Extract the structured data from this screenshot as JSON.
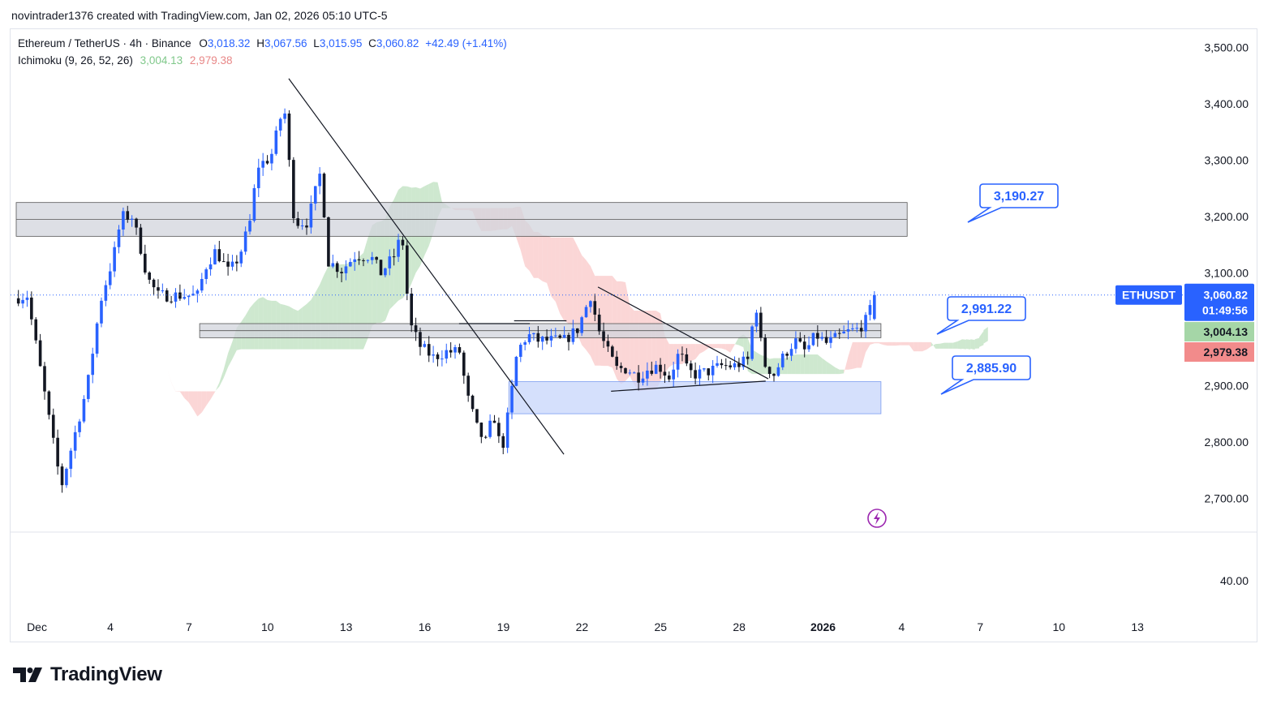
{
  "caption": "novintrader1376 created with TradingView.com, Jan 02, 2026 05:10 UTC-5",
  "legend": {
    "symbol": "Ethereum / TetherUS · 4h · Binance",
    "o_label": "O",
    "o_value": "3,018.32",
    "h_label": "H",
    "h_value": "3,067.56",
    "l_label": "L",
    "l_value": "3,015.95",
    "c_label": "C",
    "c_value": "3,060.82",
    "change": "+42.49 (+1.41%)",
    "ichimoku_label": "Ichimoku (9, 26, 52, 26)",
    "ichimoku_a": "3,004.13",
    "ichimoku_b": "2,979.38"
  },
  "price_axis": {
    "ticks": [
      "3,500.00",
      "3,400.00",
      "3,300.00",
      "3,200.00",
      "3,100.00",
      "2,900.00",
      "2,800.00",
      "2,700.00"
    ],
    "tick_values": [
      3500,
      3400,
      3300,
      3200,
      3100,
      2900,
      2800,
      2700
    ],
    "lower_pane_tick": "40.00",
    "symbol_tag": "ETHUSDT",
    "last_price": "3,060.82",
    "countdown": "01:49:56",
    "span_a_tag": "3,004.13",
    "span_b_tag": "2,979.38"
  },
  "time_axis": {
    "labels": [
      "Dec",
      "4",
      "7",
      "10",
      "13",
      "16",
      "19",
      "22",
      "25",
      "28",
      "2026",
      "4",
      "7",
      "10",
      "13"
    ]
  },
  "callouts": [
    {
      "label": "3,190.27",
      "price": 3190.27
    },
    {
      "label": "2,991.22",
      "price": 2991.22
    },
    {
      "label": "2,885.90",
      "price": 2885.9
    }
  ],
  "colors": {
    "bull": "#2962ff",
    "bear": "#131722",
    "cloud_green": "#a5d6a7",
    "cloud_red": "#f8b4b4",
    "zone_grey": "#d1d4dc",
    "zone_blue": "#c7d6fb",
    "tag_green": "#a5d6a7",
    "tag_red": "#f28b8b",
    "accent": "#2962ff"
  },
  "chart_data": {
    "type": "candlestick",
    "title": "Ethereum / TetherUS · 4h · Binance",
    "ylim": [
      2640,
      3560
    ],
    "x_day_range": [
      0,
      42
    ],
    "anchors": [
      [
        0.0,
        3055
      ],
      [
        0.5,
        3060
      ],
      [
        1.0,
        2930
      ],
      [
        1.3,
        2850
      ],
      [
        1.8,
        2720
      ],
      [
        2.3,
        2810
      ],
      [
        2.8,
        2900
      ],
      [
        3.3,
        3050
      ],
      [
        3.8,
        3130
      ],
      [
        4.1,
        3200
      ],
      [
        4.5,
        3200
      ],
      [
        4.8,
        3150
      ],
      [
        5.1,
        3090
      ],
      [
        5.5,
        3060
      ],
      [
        6.0,
        3060
      ],
      [
        6.5,
        3060
      ],
      [
        7.0,
        3060
      ],
      [
        7.3,
        3110
      ],
      [
        7.7,
        3140
      ],
      [
        8.2,
        3100
      ],
      [
        8.6,
        3130
      ],
      [
        9.0,
        3190
      ],
      [
        9.3,
        3290
      ],
      [
        9.8,
        3305
      ],
      [
        10.3,
        3400
      ],
      [
        10.7,
        3190
      ],
      [
        11.2,
        3190
      ],
      [
        11.7,
        3280
      ],
      [
        12.0,
        3120
      ],
      [
        12.5,
        3105
      ],
      [
        13.0,
        3130
      ],
      [
        13.6,
        3130
      ],
      [
        14.0,
        3100
      ],
      [
        14.5,
        3130
      ],
      [
        14.8,
        3170
      ],
      [
        15.1,
        3010
      ],
      [
        15.5,
        2970
      ],
      [
        16.0,
        2950
      ],
      [
        16.5,
        2960
      ],
      [
        17.0,
        2960
      ],
      [
        17.3,
        2880
      ],
      [
        17.7,
        2820
      ],
      [
        18.0,
        2800
      ],
      [
        18.3,
        2850
      ],
      [
        18.6,
        2780
      ],
      [
        18.9,
        2860
      ],
      [
        19.2,
        2960
      ],
      [
        19.6,
        2990
      ],
      [
        20.0,
        2980
      ],
      [
        20.5,
        2980
      ],
      [
        21.0,
        2980
      ],
      [
        21.5,
        3000
      ],
      [
        22.0,
        3060
      ],
      [
        22.3,
        3000
      ],
      [
        22.6,
        2965
      ],
      [
        23.0,
        2930
      ],
      [
        23.4,
        2930
      ],
      [
        23.8,
        2915
      ],
      [
        24.2,
        2930
      ],
      [
        24.6,
        2935
      ],
      [
        25.0,
        2915
      ],
      [
        25.4,
        2960
      ],
      [
        25.7,
        2925
      ],
      [
        26.0,
        2920
      ],
      [
        26.5,
        2925
      ],
      [
        27.0,
        2935
      ],
      [
        27.5,
        2935
      ],
      [
        28.0,
        2945
      ],
      [
        28.3,
        3050
      ],
      [
        28.6,
        2940
      ],
      [
        29.0,
        2920
      ],
      [
        29.4,
        2955
      ],
      [
        29.8,
        2980
      ],
      [
        30.2,
        2960
      ],
      [
        30.6,
        2990
      ],
      [
        31.0,
        2975
      ],
      [
        31.4,
        2985
      ],
      [
        31.8,
        2995
      ],
      [
        32.2,
        3000
      ],
      [
        32.6,
        3020
      ],
      [
        32.8,
        3060
      ]
    ],
    "last_candle": {
      "open": 3018.32,
      "high": 3067.56,
      "low": 3015.95,
      "close": 3060.82
    },
    "ichimoku": {
      "params": [
        9,
        26,
        52,
        26
      ],
      "span_a_last": 3004.13,
      "span_b_last": 2979.38
    },
    "zones": [
      {
        "type": "resistance",
        "from_day": 0,
        "to_day": 34,
        "low": 3165,
        "high": 3225
      },
      {
        "type": "support",
        "from_day": 7.0,
        "to_day": 33,
        "low": 2985,
        "high": 3010
      },
      {
        "type": "demand",
        "from_day": 18.8,
        "to_day": 33,
        "low": 2850,
        "high": 2907
      }
    ],
    "trendlines": [
      {
        "from": [
          10.4,
          3445
        ],
        "to": [
          20.9,
          2778
        ]
      },
      {
        "from": [
          22.2,
          3075
        ],
        "to": [
          28.7,
          2912
        ]
      },
      {
        "from": [
          22.7,
          2890
        ],
        "to": [
          28.6,
          2908
        ]
      },
      {
        "from": [
          16.9,
          3010
        ],
        "to": [
          19.6,
          3010
        ]
      },
      {
        "from": [
          19.0,
          3015
        ],
        "to": [
          21.0,
          3015
        ]
      }
    ]
  }
}
